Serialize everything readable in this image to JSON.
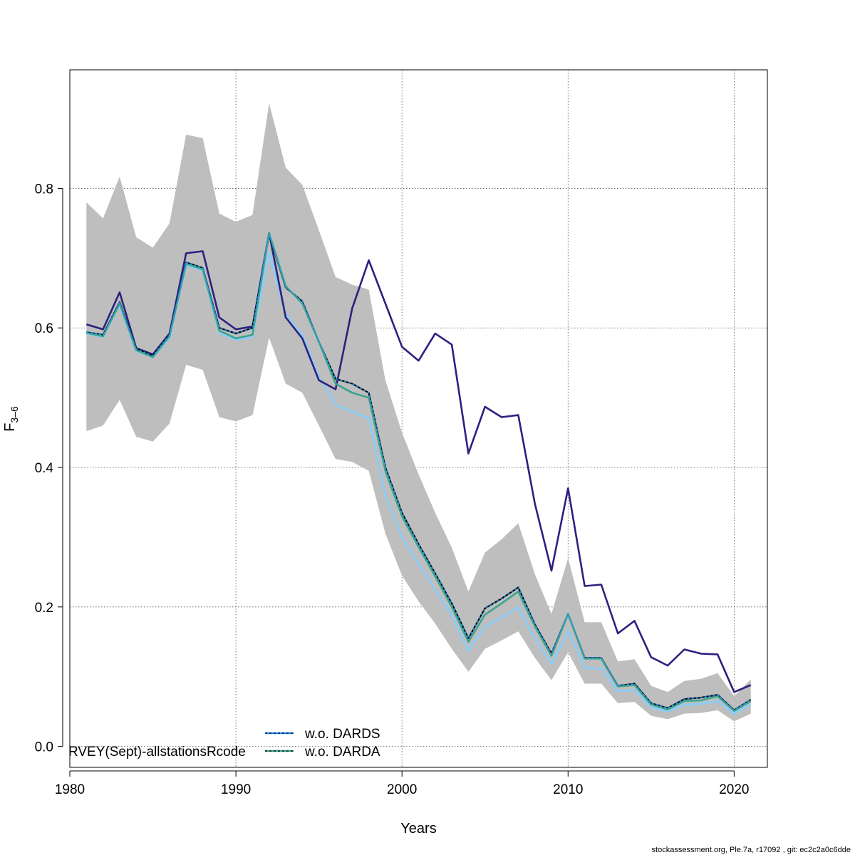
{
  "chart_data": {
    "type": "line",
    "xlabel": "Years",
    "ylabel_main": "F",
    "ylabel_sub": "3–6",
    "xlim": [
      1980,
      2022
    ],
    "ylim": [
      -0.03,
      0.97
    ],
    "x_ticks": [
      1980,
      1990,
      2000,
      2010,
      2020
    ],
    "y_ticks": [
      0.0,
      0.2,
      0.4,
      0.6,
      0.8
    ],
    "x_tick_labels": [
      "1980",
      "1990",
      "2000",
      "2010",
      "2020"
    ],
    "y_tick_labels": [
      "0.0",
      "0.2",
      "0.4",
      "0.6",
      "0.8"
    ],
    "grid": true,
    "years": [
      1981,
      1982,
      1983,
      1984,
      1985,
      1986,
      1987,
      1988,
      1989,
      1990,
      1991,
      1992,
      1993,
      1994,
      1995,
      1996,
      1997,
      1998,
      1999,
      2000,
      2001,
      2002,
      2003,
      2004,
      2005,
      2006,
      2007,
      2008,
      2009,
      2010,
      2011,
      2012,
      2013,
      2014,
      2015,
      2016,
      2017,
      2018,
      2019,
      2020,
      2021
    ],
    "band": {
      "color": "#bebebe",
      "upper": [
        0.78,
        0.757,
        0.817,
        0.73,
        0.715,
        0.75,
        0.877,
        0.872,
        0.764,
        0.752,
        0.762,
        0.922,
        0.83,
        0.805,
        0.74,
        0.673,
        0.662,
        0.655,
        0.525,
        0.45,
        0.39,
        0.335,
        0.285,
        0.222,
        0.278,
        0.297,
        0.32,
        0.247,
        0.19,
        0.27,
        0.178,
        0.178,
        0.122,
        0.125,
        0.087,
        0.078,
        0.094,
        0.097,
        0.105,
        0.072,
        0.096
      ],
      "lower": [
        0.452,
        0.46,
        0.497,
        0.444,
        0.437,
        0.463,
        0.547,
        0.54,
        0.472,
        0.466,
        0.475,
        0.586,
        0.52,
        0.507,
        0.46,
        0.412,
        0.408,
        0.395,
        0.305,
        0.245,
        0.208,
        0.176,
        0.14,
        0.107,
        0.14,
        0.152,
        0.165,
        0.127,
        0.095,
        0.135,
        0.09,
        0.09,
        0.062,
        0.064,
        0.044,
        0.039,
        0.047,
        0.048,
        0.052,
        0.036,
        0.047
      ]
    },
    "series": [
      {
        "color": "#2b2180",
        "width": 2.6,
        "dash": "",
        "values": [
          0.605,
          0.598,
          0.651,
          0.571,
          0.562,
          0.592,
          0.707,
          0.71,
          0.615,
          0.598,
          0.602,
          0.736,
          0.615,
          0.585,
          0.525,
          0.512,
          0.628,
          0.697,
          0.635,
          0.573,
          0.553,
          0.592,
          0.576,
          0.42,
          0.487,
          0.472,
          0.475,
          0.348,
          0.252,
          0.37,
          0.23,
          0.232,
          0.162,
          0.18,
          0.128,
          0.116,
          0.139,
          0.133,
          0.132,
          0.078,
          0.088
        ]
      },
      {
        "color": "#87cefa",
        "width": 2.6,
        "dash": "",
        "values": [
          0.592,
          0.587,
          0.633,
          0.567,
          0.558,
          0.585,
          0.69,
          0.682,
          0.593,
          0.583,
          0.587,
          0.708,
          0.62,
          0.59,
          0.53,
          0.49,
          0.48,
          0.47,
          0.36,
          0.3,
          0.262,
          0.225,
          0.188,
          0.137,
          0.172,
          0.185,
          0.2,
          0.155,
          0.118,
          0.165,
          0.112,
          0.112,
          0.079,
          0.081,
          0.056,
          0.05,
          0.06,
          0.061,
          0.065,
          0.047,
          0.06
        ]
      },
      {
        "color": "#000000",
        "width": 2.2,
        "dash": "",
        "values": [
          0.594,
          0.59,
          0.637,
          0.57,
          0.56,
          0.59,
          0.694,
          0.686,
          0.6,
          0.592,
          0.6,
          0.734,
          0.658,
          0.638,
          0.58,
          0.527,
          0.52,
          0.507,
          0.4,
          0.335,
          0.29,
          0.248,
          0.205,
          0.155,
          0.198,
          0.212,
          0.228,
          0.175,
          0.133,
          0.19,
          0.127,
          0.127,
          0.087,
          0.09,
          0.062,
          0.055,
          0.068,
          0.07,
          0.074,
          0.052,
          0.067
        ]
      },
      {
        "name": "w.o. DARDS",
        "color": "#1e90ff",
        "width": 1.6,
        "dash": "3,3",
        "values": [
          0.594,
          0.59,
          0.637,
          0.57,
          0.56,
          0.59,
          0.694,
          0.686,
          0.6,
          0.592,
          0.6,
          0.734,
          0.658,
          0.638,
          0.58,
          0.527,
          0.52,
          0.507,
          0.4,
          0.335,
          0.29,
          0.248,
          0.205,
          0.155,
          0.198,
          0.212,
          0.228,
          0.175,
          0.133,
          0.19,
          0.127,
          0.127,
          0.087,
          0.09,
          0.062,
          0.055,
          0.068,
          0.07,
          0.074,
          0.052,
          0.067
        ]
      },
      {
        "name": "w.o. DARDA",
        "color": "#3aa58d",
        "width": 2.6,
        "dash": "",
        "values": [
          0.593,
          0.588,
          0.635,
          0.568,
          0.558,
          0.588,
          0.692,
          0.684,
          0.596,
          0.585,
          0.59,
          0.736,
          0.66,
          0.635,
          0.58,
          0.52,
          0.507,
          0.5,
          0.395,
          0.33,
          0.286,
          0.244,
          0.2,
          0.15,
          0.189,
          0.205,
          0.222,
          0.172,
          0.13,
          0.19,
          0.126,
          0.126,
          0.086,
          0.088,
          0.06,
          0.053,
          0.065,
          0.066,
          0.072,
          0.051,
          0.065
        ]
      }
    ],
    "legend": {
      "position": "bottom-left",
      "entries": [
        {
          "label": "w.o. DARDS",
          "color": "#1e90ff",
          "dash": "3,3"
        },
        {
          "label": "w.o. DARDA",
          "color": "#3aa58d",
          "dash": ""
        }
      ]
    },
    "inset_text": "RVEY(Sept)-allstationsRcode",
    "footer": "stockassessment.org, Ple.7a, r17092 , git: ec2c2a0c6dde"
  }
}
